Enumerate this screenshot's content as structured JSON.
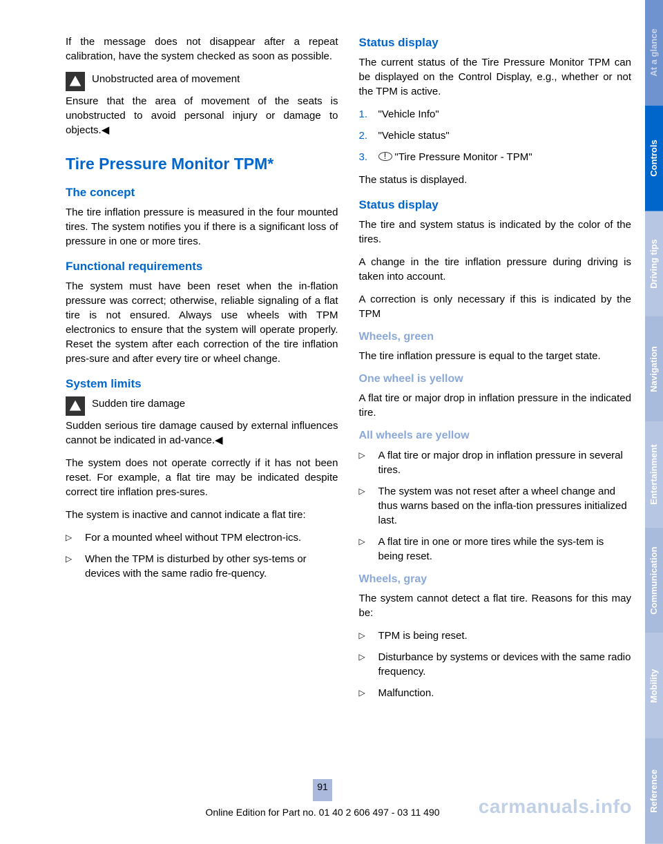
{
  "side_tabs": [
    {
      "label": "At a glance",
      "bg": "#6f93cf",
      "color": "#c9d5ea"
    },
    {
      "label": "Controls",
      "bg": "#0066cc",
      "color": "#ffffff"
    },
    {
      "label": "Driving tips",
      "bg": "#b7c6e2",
      "color": "#ffffff"
    },
    {
      "label": "Navigation",
      "bg": "#a9bbdc",
      "color": "#ffffff"
    },
    {
      "label": "Entertainment",
      "bg": "#b7c6e2",
      "color": "#ffffff"
    },
    {
      "label": "Communication",
      "bg": "#a9bbdc",
      "color": "#ffffff"
    },
    {
      "label": "Mobility",
      "bg": "#b7c6e2",
      "color": "#ffffff"
    },
    {
      "label": "Reference",
      "bg": "#a9bbdc",
      "color": "#ffffff"
    }
  ],
  "left": {
    "intro_p": "If the message does not disappear after a repeat calibration, have the system checked as soon as possible.",
    "warn1_title": "Unobstructed area of movement",
    "warn1_body": "Ensure that the area of movement of the seats is unobstructed to avoid personal injury or damage to objects.◀",
    "h1": "Tire Pressure Monitor TPM*",
    "concept_h": "The concept",
    "concept_p": "The tire inflation pressure is measured in the four mounted tires. The system notifies you if there is a significant loss of pressure in one or more tires.",
    "func_h": "Functional requirements",
    "func_p": "The system must have been reset when the in‐flation pressure was correct; otherwise, reliable signaling of a flat tire is not ensured. Always use wheels with TPM electronics to ensure that the system will operate properly. Reset the system after each correction of the tire inflation pres‐sure and after every tire or wheel change.",
    "limits_h": "System limits",
    "warn2_title": "Sudden tire damage",
    "warn2_body": "Sudden serious tire damage caused by external influences cannot be indicated in ad‐vance.◀",
    "limits_p1": "The system does not operate correctly if it has not been reset. For example, a flat tire may be indicated despite correct tire inflation pres‐sures.",
    "limits_p2": "The system is inactive and cannot indicate a flat tire:",
    "limits_li1": "For a mounted wheel without TPM electron‐ics.",
    "limits_li2": "When the TPM is disturbed by other sys‐tems or devices with the same radio fre‐quency."
  },
  "right": {
    "status_h": "Status display",
    "status_p": "The current status of the Tire Pressure Monitor TPM can be displayed on the Control Display, e.g., whether or not the TPM is active.",
    "ol1": "\"Vehicle Info\"",
    "ol2": "\"Vehicle status\"",
    "ol3": "\"Tire Pressure Monitor - TPM\"",
    "status_after": "The status is displayed.",
    "status2_h": "Status display",
    "status2_p1": "The tire and system status is indicated by the color of the tires.",
    "status2_p2": "A change in the tire inflation pressure during driving is taken into account.",
    "status2_p3": "A correction is only necessary if this is indicated by the TPM",
    "green_h": "Wheels, green",
    "green_p": "The tire inflation pressure is equal to the target state.",
    "one_yellow_h": "One wheel is yellow",
    "one_yellow_p": "A flat tire or major drop in inflation pressure in the indicated tire.",
    "all_yellow_h": "All wheels are yellow",
    "ay_li1": "A flat tire or major drop in inflation pressure in several tires.",
    "ay_li2": "The system was not reset after a wheel change and thus warns based on the infla‐tion pressures initialized last.",
    "ay_li3": "A flat tire in one or more tires while the sys‐tem is being reset.",
    "gray_h": "Wheels, gray",
    "gray_p": "The system cannot detect a flat tire. Reasons for this may be:",
    "g_li1": "TPM is being reset.",
    "g_li2": "Disturbance by systems or devices with the same radio frequency.",
    "g_li3": "Malfunction."
  },
  "page_number": "91",
  "footer": "Online Edition for Part no. 01 40 2 606 497 - 03 11 490",
  "watermark": "carmanuals.info",
  "colors": {
    "heading_blue": "#0066cc",
    "sub_blue": "#8aa8d8",
    "page_num_bg": "#aab9dc"
  }
}
